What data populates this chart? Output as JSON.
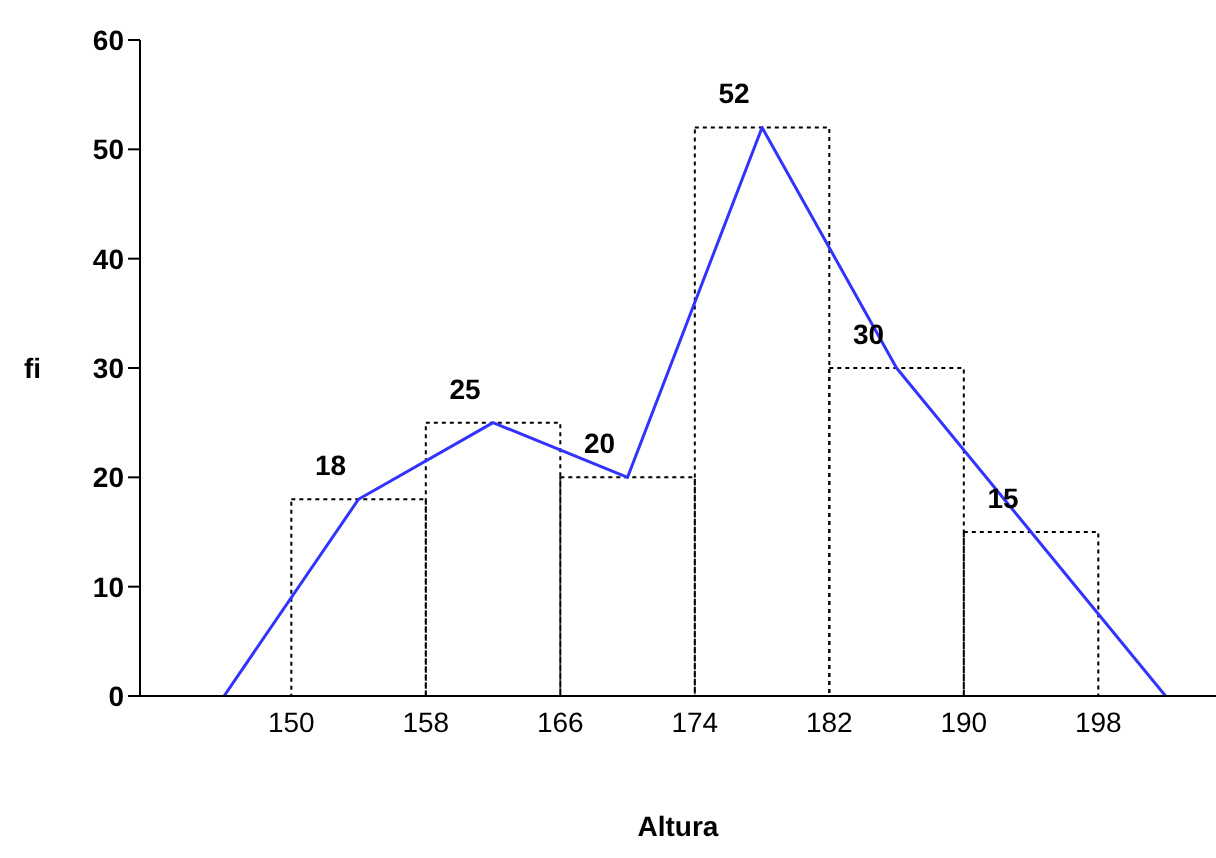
{
  "chart_data": {
    "type": "histogram",
    "xlabel": "Altura",
    "ylabel": "fi",
    "bins": [
      150,
      158,
      166,
      174,
      182,
      190,
      198
    ],
    "series": [
      {
        "values": [
          18,
          25,
          20,
          52,
          30,
          15
        ],
        "value_labels": [
          "18",
          "25",
          "20",
          "52",
          "30",
          "15"
        ],
        "color": "#000000",
        "line_style": "dotted"
      },
      {
        "type": "line",
        "x": [
          146,
          154,
          162,
          170,
          178,
          186,
          194,
          202
        ],
        "values": [
          0,
          18,
          25,
          20,
          52,
          30,
          15,
          0
        ],
        "color": "#3333ff",
        "line_style": "solid"
      }
    ],
    "marker": "none",
    "xlim": [
      141,
      205
    ],
    "xticks": [
      150,
      158,
      166,
      174,
      182,
      190,
      198
    ],
    "ylim": [
      0,
      60
    ],
    "yticks": [
      0,
      10,
      20,
      30,
      40,
      50,
      60
    ]
  }
}
